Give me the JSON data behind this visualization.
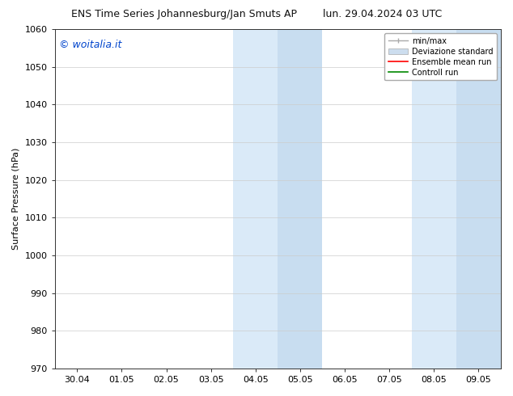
{
  "title_left": "ENS Time Series Johannesburg/Jan Smuts AP",
  "title_right": "lun. 29.04.2024 03 UTC",
  "ylabel": "Surface Pressure (hPa)",
  "ylim": [
    970,
    1060
  ],
  "yticks": [
    970,
    980,
    990,
    1000,
    1010,
    1020,
    1030,
    1040,
    1050,
    1060
  ],
  "xtick_labels": [
    "30.04",
    "01.05",
    "02.05",
    "03.05",
    "04.05",
    "05.05",
    "06.05",
    "07.05",
    "08.05",
    "09.05"
  ],
  "xtick_positions": [
    0,
    1,
    2,
    3,
    4,
    5,
    6,
    7,
    8,
    9
  ],
  "xlim": [
    -0.5,
    9.5
  ],
  "shaded_regions": [
    {
      "x_start": 3.5,
      "x_end": 4.5,
      "color": "#daeaf8"
    },
    {
      "x_start": 4.5,
      "x_end": 5.5,
      "color": "#c8ddf0"
    },
    {
      "x_start": 7.5,
      "x_end": 8.5,
      "color": "#daeaf8"
    },
    {
      "x_start": 8.5,
      "x_end": 9.5,
      "color": "#c8ddf0"
    }
  ],
  "watermark_text": "© woitalia.it",
  "watermark_color": "#0044cc",
  "legend_labels": [
    "min/max",
    "Deviazione standard",
    "Ensemble mean run",
    "Controll run"
  ],
  "legend_colors": [
    "#aaaaaa",
    "#ccddee",
    "#ff0000",
    "#008800"
  ],
  "background_color": "#ffffff",
  "plot_bg_color": "#ffffff",
  "title_fontsize": 9,
  "ylabel_fontsize": 8,
  "tick_fontsize": 8,
  "watermark_fontsize": 9,
  "legend_fontsize": 7
}
